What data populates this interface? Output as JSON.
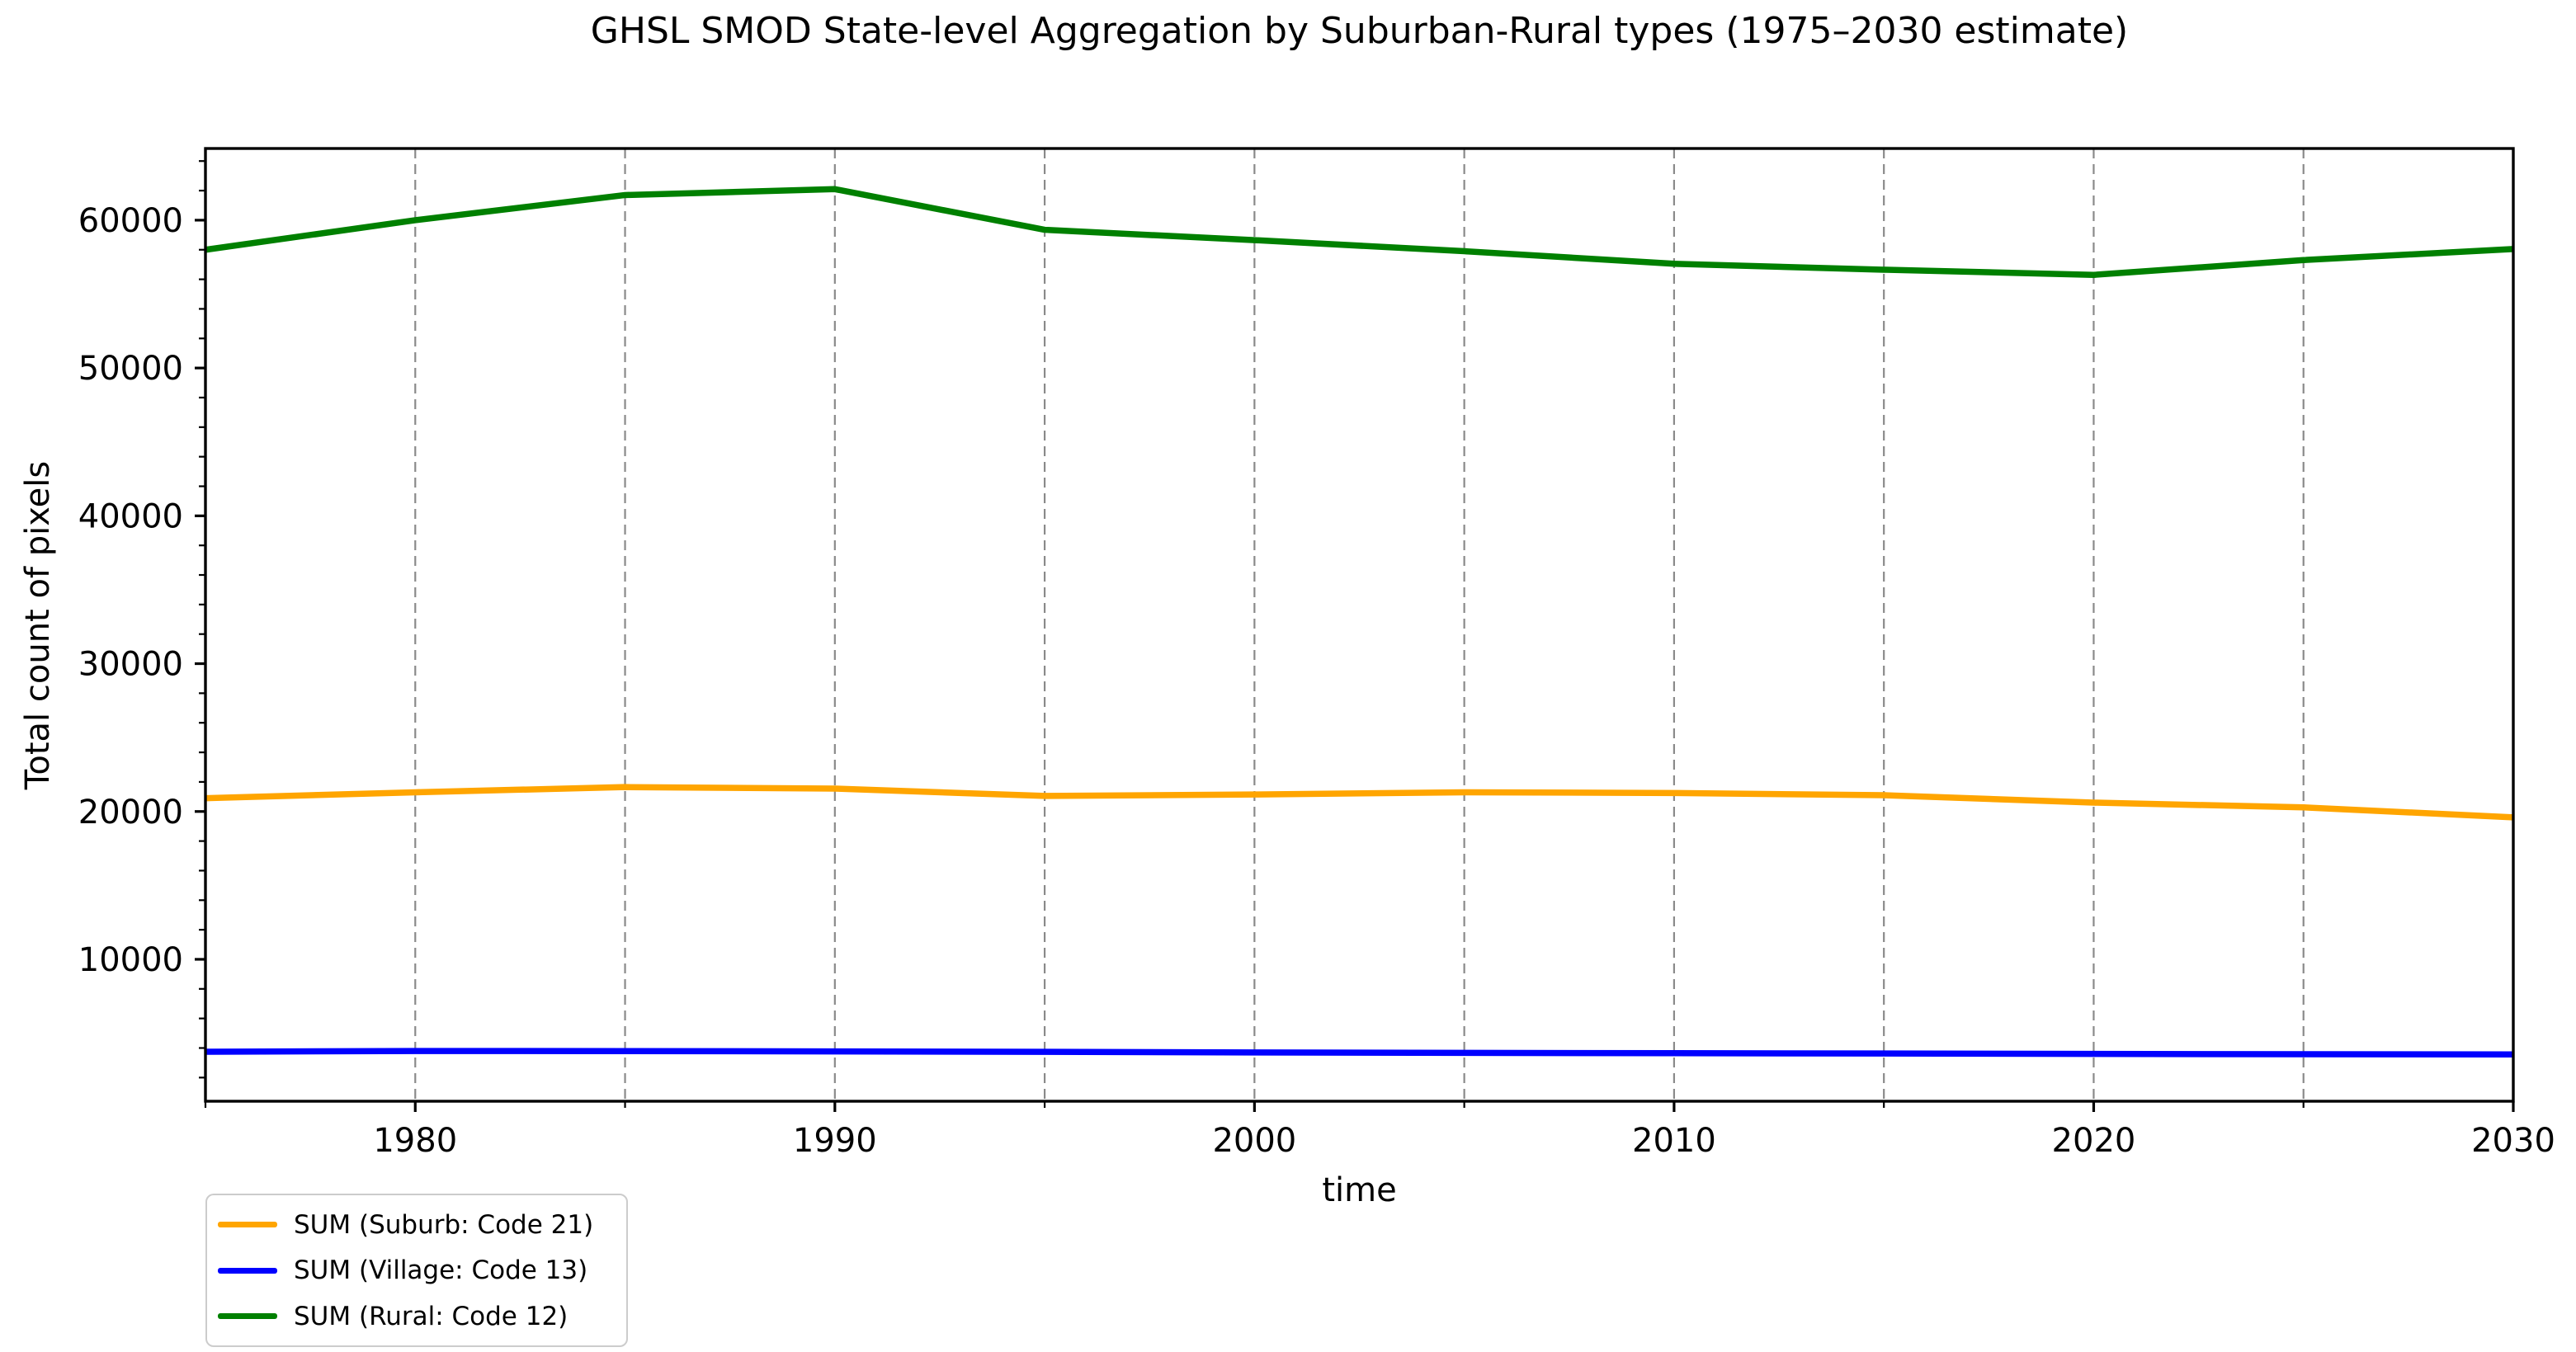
{
  "chart_data": {
    "type": "line",
    "title": "GHSL SMOD State-level Aggregation by Suburban-Rural types (1975–2030 estimate)",
    "xlabel": "time",
    "ylabel": "Total count of pixels",
    "x": [
      1975,
      1980,
      1985,
      1990,
      1995,
      2000,
      2005,
      2010,
      2015,
      2020,
      2025,
      2030
    ],
    "series": [
      {
        "name": "SUM (Suburb: Code 21)",
        "color": "#FFA500",
        "values": [
          20900,
          21300,
          21650,
          21550,
          21050,
          21150,
          21300,
          21250,
          21100,
          20600,
          20280,
          19600
        ]
      },
      {
        "name": "SUM (Village: Code 13)",
        "color": "#0000FF",
        "values": [
          3750,
          3800,
          3790,
          3770,
          3740,
          3700,
          3670,
          3650,
          3630,
          3600,
          3580,
          3570
        ]
      },
      {
        "name": "SUM (Rural: Code 12)",
        "color": "#008000",
        "values": [
          58000,
          60000,
          61700,
          62100,
          59350,
          58650,
          57900,
          57050,
          56650,
          56300,
          57300,
          58050
        ]
      }
    ],
    "xlim": [
      1975,
      2030
    ],
    "ylim": [
      400,
      64850
    ],
    "x_major_ticks": [
      1980,
      1990,
      2000,
      2010,
      2020,
      2030
    ],
    "x_minor_ticks": [
      1975,
      1985,
      1995,
      2005,
      2015,
      2025
    ],
    "y_major_ticks": [
      10000,
      20000,
      30000,
      40000,
      50000,
      60000
    ],
    "y_minor_step": 2000,
    "grid": {
      "axis": "x",
      "style": "dashed",
      "color": "#8a8a8a",
      "positions": [
        1980,
        1985,
        1990,
        1995,
        2000,
        2005,
        2010,
        2015,
        2020,
        2025
      ]
    },
    "legend": {
      "location": "lower-left-below-axes",
      "entries": [
        "SUM (Suburb: Code 21)",
        "SUM (Village: Code 13)",
        "SUM (Rural: Code 12)"
      ]
    },
    "axis_color": "#000000"
  }
}
